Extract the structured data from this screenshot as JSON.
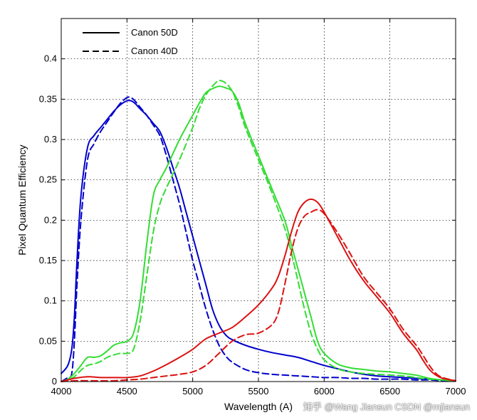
{
  "chart_data": {
    "type": "line",
    "title": "",
    "xlabel": "Wavelength (A)",
    "ylabel": "Pixel Quantum Efficiency",
    "xlim": [
      4000,
      7000
    ],
    "ylim": [
      0,
      0.45
    ],
    "xticks": [
      4000,
      4500,
      5000,
      5500,
      6000,
      6500,
      7000
    ],
    "xtick_labels": [
      "4000",
      "4500",
      "5000",
      "5500",
      "6000",
      "6500",
      "7000"
    ],
    "yticks": [
      0,
      0.05,
      0.1,
      0.15,
      0.2,
      0.25,
      0.3,
      0.35,
      0.4
    ],
    "ytick_labels": [
      "0",
      "0.05",
      "0.1",
      "0.15",
      "0.2",
      "0.25",
      "0.3",
      "0.35",
      "0.4"
    ],
    "grid": true,
    "legend": {
      "position": "top-left",
      "entries": [
        {
          "label": "Canon 50D",
          "style": "solid"
        },
        {
          "label": "Canon 40D",
          "style": "dashed"
        }
      ]
    },
    "colors": {
      "blue": "#0000cc",
      "green": "#33dd33",
      "red": "#dd1111"
    },
    "series": [
      {
        "name": "Canon 50D blue",
        "camera": "Canon 50D",
        "channel": "blue",
        "style": "solid",
        "x": [
          4000,
          4050,
          4080,
          4100,
          4120,
          4150,
          4200,
          4250,
          4300,
          4350,
          4400,
          4450,
          4500,
          4530,
          4560,
          4600,
          4650,
          4700,
          4750,
          4800,
          4850,
          4900,
          4950,
          5000,
          5050,
          5100,
          5150,
          5200,
          5250,
          5300,
          5400,
          5500,
          5600,
          5700,
          5800,
          5900,
          6000,
          6100,
          6200,
          6300,
          6400,
          6500,
          6600,
          6700,
          6800,
          6900,
          7000
        ],
        "y": [
          0.01,
          0.02,
          0.04,
          0.08,
          0.15,
          0.23,
          0.29,
          0.305,
          0.315,
          0.325,
          0.335,
          0.343,
          0.348,
          0.348,
          0.345,
          0.338,
          0.33,
          0.32,
          0.31,
          0.29,
          0.265,
          0.24,
          0.21,
          0.18,
          0.15,
          0.12,
          0.09,
          0.07,
          0.058,
          0.052,
          0.045,
          0.04,
          0.036,
          0.033,
          0.03,
          0.025,
          0.02,
          0.016,
          0.012,
          0.009,
          0.007,
          0.006,
          0.005,
          0.004,
          0.003,
          0.002,
          0.001
        ]
      },
      {
        "name": "Canon 40D blue",
        "camera": "Canon 40D",
        "channel": "blue",
        "style": "dashed",
        "x": [
          4000,
          4050,
          4080,
          4100,
          4120,
          4150,
          4200,
          4250,
          4300,
          4350,
          4400,
          4450,
          4500,
          4530,
          4560,
          4600,
          4650,
          4700,
          4750,
          4800,
          4850,
          4900,
          4950,
          5000,
          5050,
          5100,
          5150,
          5200,
          5250,
          5300,
          5400,
          5500,
          5600,
          5700,
          5800,
          5900,
          6000,
          6100,
          6200,
          6300,
          6400,
          6500,
          6600,
          6700,
          6800,
          6900,
          7000
        ],
        "y": [
          0.0,
          0.005,
          0.01,
          0.05,
          0.12,
          0.2,
          0.275,
          0.295,
          0.31,
          0.322,
          0.334,
          0.345,
          0.352,
          0.352,
          0.348,
          0.34,
          0.33,
          0.318,
          0.305,
          0.28,
          0.25,
          0.22,
          0.185,
          0.15,
          0.12,
          0.09,
          0.065,
          0.045,
          0.032,
          0.024,
          0.015,
          0.011,
          0.009,
          0.008,
          0.007,
          0.006,
          0.005,
          0.005,
          0.004,
          0.004,
          0.003,
          0.003,
          0.003,
          0.002,
          0.002,
          0.001,
          0.001
        ]
      },
      {
        "name": "Canon 50D green",
        "camera": "Canon 50D",
        "channel": "green",
        "style": "solid",
        "x": [
          4000,
          4050,
          4100,
          4150,
          4200,
          4250,
          4300,
          4350,
          4400,
          4450,
          4500,
          4550,
          4600,
          4650,
          4700,
          4750,
          4800,
          4900,
          5000,
          5050,
          5100,
          5150,
          5200,
          5250,
          5300,
          5350,
          5400,
          5500,
          5600,
          5700,
          5750,
          5800,
          5850,
          5900,
          5950,
          6000,
          6100,
          6200,
          6300,
          6400,
          6500,
          6600,
          6700,
          6800,
          6900,
          7000
        ],
        "y": [
          0.0,
          0.003,
          0.01,
          0.02,
          0.03,
          0.03,
          0.032,
          0.038,
          0.045,
          0.048,
          0.05,
          0.06,
          0.1,
          0.17,
          0.23,
          0.25,
          0.265,
          0.3,
          0.33,
          0.345,
          0.358,
          0.363,
          0.366,
          0.364,
          0.36,
          0.345,
          0.32,
          0.28,
          0.24,
          0.2,
          0.17,
          0.14,
          0.11,
          0.08,
          0.05,
          0.035,
          0.022,
          0.017,
          0.015,
          0.013,
          0.012,
          0.01,
          0.008,
          0.004,
          0.002,
          0.001
        ]
      },
      {
        "name": "Canon 40D green",
        "camera": "Canon 40D",
        "channel": "green",
        "style": "dashed",
        "x": [
          4000,
          4050,
          4100,
          4150,
          4200,
          4250,
          4300,
          4350,
          4400,
          4450,
          4500,
          4550,
          4600,
          4650,
          4700,
          4750,
          4800,
          4900,
          5000,
          5050,
          5100,
          5150,
          5200,
          5250,
          5300,
          5350,
          5400,
          5500,
          5600,
          5700,
          5750,
          5800,
          5850,
          5900,
          5950,
          6000,
          6100,
          6200,
          6300,
          6400,
          6500,
          6600,
          6700,
          6800,
          6900,
          7000
        ],
        "y": [
          0.0,
          0.002,
          0.006,
          0.014,
          0.02,
          0.022,
          0.025,
          0.03,
          0.033,
          0.035,
          0.035,
          0.04,
          0.075,
          0.13,
          0.185,
          0.22,
          0.24,
          0.275,
          0.315,
          0.338,
          0.355,
          0.366,
          0.373,
          0.37,
          0.36,
          0.34,
          0.315,
          0.275,
          0.235,
          0.19,
          0.16,
          0.125,
          0.09,
          0.06,
          0.04,
          0.027,
          0.016,
          0.012,
          0.01,
          0.009,
          0.008,
          0.007,
          0.005,
          0.003,
          0.002,
          0.001
        ]
      },
      {
        "name": "Canon 50D red",
        "camera": "Canon 50D",
        "channel": "red",
        "style": "solid",
        "x": [
          4000,
          4100,
          4200,
          4300,
          4400,
          4500,
          4600,
          4700,
          4800,
          4900,
          5000,
          5100,
          5200,
          5300,
          5400,
          5500,
          5600,
          5650,
          5700,
          5750,
          5800,
          5850,
          5900,
          5950,
          6000,
          6100,
          6200,
          6300,
          6400,
          6500,
          6600,
          6700,
          6750,
          6800,
          6850,
          6900,
          7000
        ],
        "y": [
          0.0,
          0.004,
          0.006,
          0.005,
          0.005,
          0.005,
          0.007,
          0.013,
          0.021,
          0.03,
          0.04,
          0.053,
          0.06,
          0.067,
          0.08,
          0.095,
          0.115,
          0.13,
          0.155,
          0.185,
          0.21,
          0.222,
          0.226,
          0.222,
          0.21,
          0.18,
          0.15,
          0.125,
          0.105,
          0.085,
          0.06,
          0.04,
          0.027,
          0.015,
          0.008,
          0.004,
          0.001
        ]
      },
      {
        "name": "Canon 40D red",
        "camera": "Canon 40D",
        "channel": "red",
        "style": "dashed",
        "x": [
          4000,
          4100,
          4200,
          4300,
          4400,
          4500,
          4600,
          4700,
          4800,
          4900,
          5000,
          5100,
          5200,
          5300,
          5400,
          5500,
          5600,
          5650,
          5700,
          5750,
          5800,
          5850,
          5900,
          5950,
          6000,
          6100,
          6200,
          6300,
          6400,
          6500,
          6600,
          6700,
          6750,
          6800,
          6850,
          6900,
          7000
        ],
        "y": [
          0.0,
          0.001,
          0.001,
          0.001,
          0.001,
          0.002,
          0.003,
          0.005,
          0.007,
          0.009,
          0.012,
          0.02,
          0.035,
          0.05,
          0.058,
          0.06,
          0.07,
          0.085,
          0.12,
          0.16,
          0.19,
          0.205,
          0.21,
          0.213,
          0.208,
          0.185,
          0.158,
          0.13,
          0.11,
          0.09,
          0.065,
          0.045,
          0.033,
          0.02,
          0.01,
          0.005,
          0.001
        ]
      }
    ]
  },
  "watermark": "知乎 @Wang Jiansun  CSDN @mjiansun"
}
